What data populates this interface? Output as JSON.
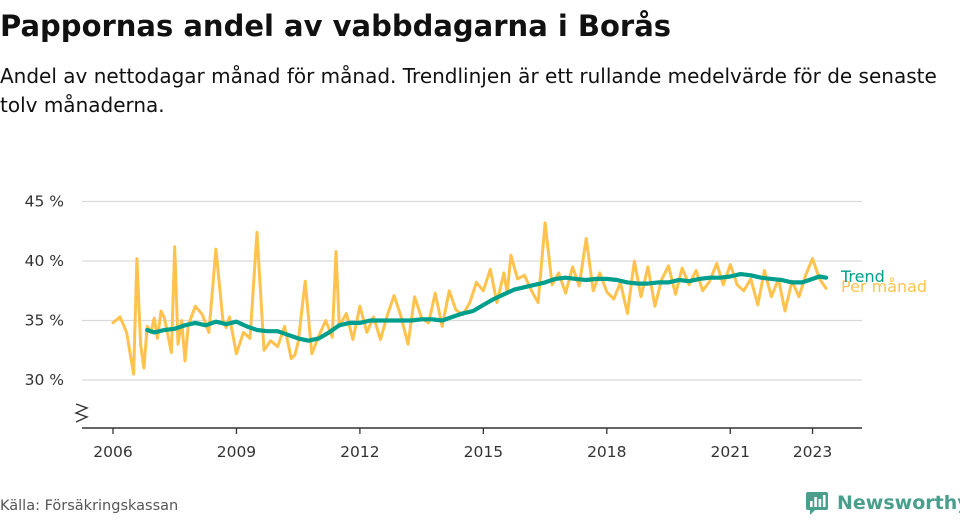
{
  "title": "Pappornas andel av vabbdagarna i Borås",
  "subtitle": "Andel av nettodagar månad för månad. Trendlinjen är ett rullande medelvärde för de senaste tolv månaderna.",
  "source": "Källa: Försäkringskassan",
  "brand": {
    "name": "Newsworthy",
    "icon": "newsworthy-logo-icon"
  },
  "colors": {
    "monthly": "#ffc34d",
    "trend": "#009e8c",
    "grid": "#d9d9d9",
    "axis": "#333333"
  },
  "chart_data": {
    "type": "line",
    "x_unit": "year",
    "xlim": [
      2005.4,
      2024.1
    ],
    "ylim": [
      27,
      45
    ],
    "y_ticks": [
      30,
      35,
      40,
      45
    ],
    "y_tick_labels": [
      "30 %",
      "35 %",
      "40 %",
      "45 %"
    ],
    "x_ticks": [
      2006,
      2009,
      2012,
      2015,
      2018,
      2021,
      2023
    ],
    "x_tick_labels": [
      "2006",
      "2009",
      "2012",
      "2015",
      "2018",
      "2021",
      "2023"
    ],
    "y_axis_break": true,
    "grid": true,
    "series": [
      {
        "name": "Per månad",
        "color": "#ffc34d",
        "x": [
          2006.0,
          2006.17,
          2006.33,
          2006.5,
          2006.58,
          2006.67,
          2006.75,
          2006.83,
          2006.92,
          2007.0,
          2007.08,
          2007.17,
          2007.25,
          2007.42,
          2007.5,
          2007.58,
          2007.67,
          2007.75,
          2007.83,
          2008.0,
          2008.17,
          2008.33,
          2008.5,
          2008.67,
          2008.75,
          2008.83,
          2009.0,
          2009.17,
          2009.33,
          2009.5,
          2009.67,
          2009.83,
          2010.0,
          2010.17,
          2010.33,
          2010.42,
          2010.5,
          2010.67,
          2010.83,
          2011.0,
          2011.17,
          2011.33,
          2011.42,
          2011.5,
          2011.67,
          2011.83,
          2012.0,
          2012.17,
          2012.33,
          2012.5,
          2012.67,
          2012.83,
          2013.0,
          2013.17,
          2013.33,
          2013.5,
          2013.67,
          2013.83,
          2014.0,
          2014.17,
          2014.33,
          2014.5,
          2014.67,
          2014.83,
          2015.0,
          2015.17,
          2015.33,
          2015.5,
          2015.58,
          2015.67,
          2015.83,
          2016.0,
          2016.17,
          2016.33,
          2016.5,
          2016.67,
          2016.83,
          2017.0,
          2017.17,
          2017.33,
          2017.5,
          2017.67,
          2017.83,
          2018.0,
          2018.17,
          2018.33,
          2018.5,
          2018.67,
          2018.83,
          2019.0,
          2019.17,
          2019.33,
          2019.5,
          2019.67,
          2019.83,
          2020.0,
          2020.17,
          2020.33,
          2020.5,
          2020.67,
          2020.83,
          2021.0,
          2021.17,
          2021.33,
          2021.5,
          2021.67,
          2021.83,
          2022.0,
          2022.17,
          2022.33,
          2022.5,
          2022.67,
          2022.83,
          2023.0,
          2023.17,
          2023.33
        ],
        "y": [
          34.8,
          35.3,
          34.0,
          30.5,
          40.2,
          33.0,
          31.0,
          34.5,
          34.0,
          35.2,
          33.5,
          35.8,
          35.2,
          32.3,
          41.2,
          33.0,
          35.0,
          31.6,
          34.6,
          36.2,
          35.5,
          34.0,
          41.0,
          35.0,
          34.4,
          35.3,
          32.2,
          34.0,
          33.5,
          42.4,
          32.5,
          33.3,
          32.8,
          34.5,
          31.8,
          32.1,
          33.2,
          38.3,
          32.2,
          33.7,
          35.0,
          33.6,
          40.8,
          34.5,
          35.6,
          33.4,
          36.2,
          34.0,
          35.3,
          33.4,
          35.5,
          37.1,
          35.3,
          33.0,
          37.0,
          35.2,
          34.8,
          37.3,
          34.5,
          37.5,
          35.9,
          35.5,
          36.5,
          38.2,
          37.5,
          39.3,
          36.5,
          39.0,
          37.3,
          40.5,
          38.5,
          38.8,
          37.5,
          36.5,
          43.2,
          38.0,
          39.0,
          37.3,
          39.5,
          37.9,
          41.9,
          37.5,
          39.0,
          37.4,
          36.8,
          38.2,
          35.6,
          40.0,
          37.0,
          39.5,
          36.2,
          38.4,
          39.6,
          37.2,
          39.4,
          38.0,
          39.2,
          37.5,
          38.3,
          39.8,
          38.0,
          39.7,
          38.0,
          37.5,
          38.5,
          36.3,
          39.2,
          37.0,
          38.5,
          35.8,
          38.3,
          37.0,
          38.8,
          40.2,
          38.5,
          37.7
        ]
      },
      {
        "name": "Trend",
        "color": "#009e8c",
        "x": [
          2006.83,
          2007.0,
          2007.25,
          2007.5,
          2007.75,
          2008.0,
          2008.25,
          2008.5,
          2008.75,
          2009.0,
          2009.25,
          2009.5,
          2009.75,
          2010.0,
          2010.25,
          2010.5,
          2010.75,
          2011.0,
          2011.25,
          2011.5,
          2011.75,
          2012.0,
          2012.25,
          2012.5,
          2012.75,
          2013.0,
          2013.25,
          2013.5,
          2013.75,
          2014.0,
          2014.25,
          2014.5,
          2014.75,
          2015.0,
          2015.25,
          2015.5,
          2015.75,
          2016.0,
          2016.25,
          2016.5,
          2016.75,
          2017.0,
          2017.25,
          2017.5,
          2017.75,
          2018.0,
          2018.25,
          2018.5,
          2018.75,
          2019.0,
          2019.25,
          2019.5,
          2019.75,
          2020.0,
          2020.25,
          2020.5,
          2020.75,
          2021.0,
          2021.25,
          2021.5,
          2021.75,
          2022.0,
          2022.25,
          2022.5,
          2022.75,
          2023.0,
          2023.17,
          2023.33
        ],
        "y": [
          34.2,
          34.0,
          34.2,
          34.3,
          34.6,
          34.8,
          34.6,
          34.9,
          34.7,
          34.9,
          34.5,
          34.2,
          34.1,
          34.1,
          33.8,
          33.5,
          33.3,
          33.5,
          34.0,
          34.6,
          34.8,
          34.8,
          35.0,
          35.0,
          35.0,
          35.0,
          35.0,
          35.1,
          35.1,
          35.0,
          35.3,
          35.6,
          35.8,
          36.3,
          36.8,
          37.2,
          37.6,
          37.8,
          38.0,
          38.2,
          38.5,
          38.6,
          38.5,
          38.4,
          38.5,
          38.5,
          38.4,
          38.2,
          38.1,
          38.1,
          38.2,
          38.2,
          38.4,
          38.3,
          38.5,
          38.6,
          38.6,
          38.7,
          38.9,
          38.8,
          38.6,
          38.5,
          38.4,
          38.2,
          38.2,
          38.5,
          38.7,
          38.6
        ]
      }
    ]
  }
}
